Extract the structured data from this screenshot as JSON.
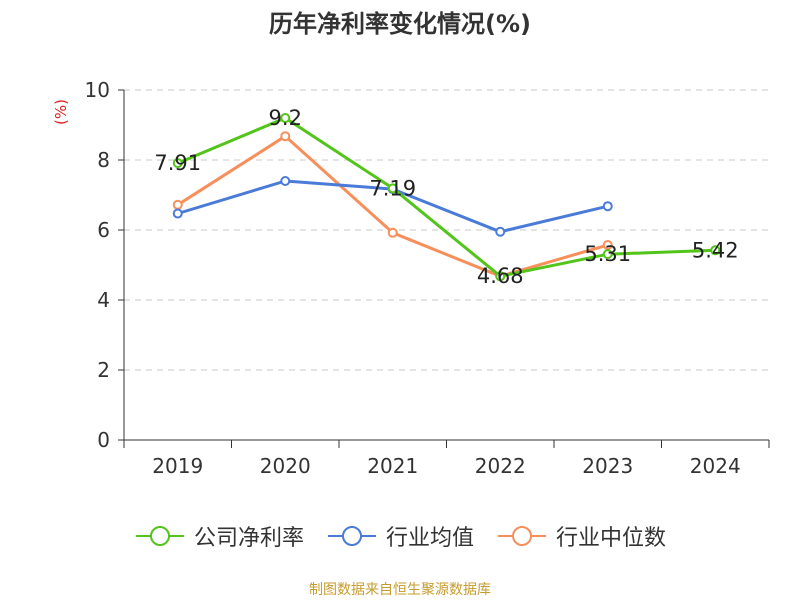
{
  "title": "历年净利率变化情况(%)",
  "unit": "(%)",
  "footer": "制图数据来自恒生聚源数据库",
  "chart_data": {
    "type": "line",
    "title": "历年净利率变化情况(%)",
    "x": [
      "2019",
      "2020",
      "2021",
      "2022",
      "2023",
      "2024"
    ],
    "ylim": [
      0,
      10
    ],
    "yticks": [
      0,
      2,
      4,
      6,
      8,
      10
    ],
    "grid": true,
    "legend_position": "bottom",
    "series": [
      {
        "name": "公司净利率",
        "color": "#52c41a",
        "values": [
          7.91,
          9.2,
          7.19,
          4.68,
          5.31,
          5.42
        ],
        "labels": [
          "7.91",
          "9.2",
          "7.19",
          "4.68",
          "5.31",
          "5.42"
        ]
      },
      {
        "name": "行业均值",
        "color": "#4a7bd8",
        "values": [
          6.47,
          7.4,
          7.17,
          5.95,
          6.68,
          null
        ]
      },
      {
        "name": "行业中位数",
        "color": "#f78f5b",
        "values": [
          6.72,
          8.68,
          5.92,
          4.68,
          5.57,
          null
        ]
      }
    ]
  }
}
